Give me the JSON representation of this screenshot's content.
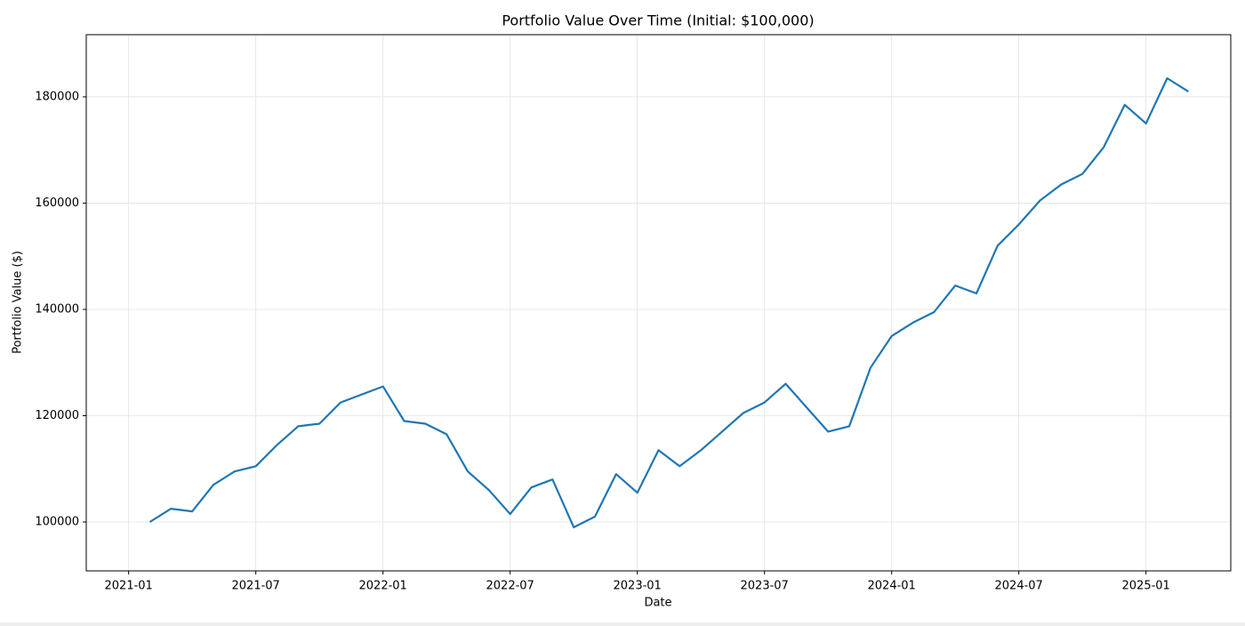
{
  "chart_data": {
    "type": "line",
    "title": "Portfolio Value Over Time (Initial: $100,000)",
    "x_label": "Date",
    "y_label": "Portfolio Value ($)",
    "x": [
      "2021-02",
      "2021-03",
      "2021-04",
      "2021-05",
      "2021-06",
      "2021-07",
      "2021-08",
      "2021-09",
      "2021-10",
      "2021-11",
      "2021-12",
      "2022-01",
      "2022-02",
      "2022-03",
      "2022-04",
      "2022-05",
      "2022-06",
      "2022-07",
      "2022-08",
      "2022-09",
      "2022-10",
      "2022-11",
      "2022-12",
      "2023-01",
      "2023-02",
      "2023-03",
      "2023-04",
      "2023-05",
      "2023-06",
      "2023-07",
      "2023-08",
      "2023-09",
      "2023-10",
      "2023-11",
      "2023-12",
      "2024-01",
      "2024-02",
      "2024-03",
      "2024-04",
      "2024-05",
      "2024-06",
      "2024-07",
      "2024-08",
      "2024-09",
      "2024-10",
      "2024-11",
      "2024-12",
      "2025-01",
      "2025-02",
      "2025-03"
    ],
    "series": [
      {
        "name": "Portfolio Value",
        "color": "#1f77b4",
        "values": [
          100000,
          102500,
          102000,
          107000,
          109500,
          110500,
          114500,
          118000,
          118500,
          122500,
          124000,
          125500,
          119000,
          118500,
          116500,
          109500,
          106000,
          101500,
          106500,
          108000,
          99000,
          101000,
          109000,
          105500,
          113500,
          110500,
          113500,
          117000,
          120500,
          122500,
          126000,
          121500,
          117000,
          118000,
          129000,
          135000,
          137500,
          139500,
          144500,
          143000,
          152000,
          156000,
          160500,
          163500,
          165500,
          170500,
          178500,
          175000,
          183500,
          181000
        ]
      }
    ],
    "xlim": [
      "2020-11",
      "2025-05"
    ],
    "xticks": [
      "2021-01",
      "2021-07",
      "2022-01",
      "2022-07",
      "2023-01",
      "2023-07",
      "2024-01",
      "2024-07",
      "2025-01"
    ],
    "ylim": [
      90800,
      191700
    ],
    "yticks": [
      100000,
      120000,
      140000,
      160000,
      180000
    ],
    "grid": true
  }
}
